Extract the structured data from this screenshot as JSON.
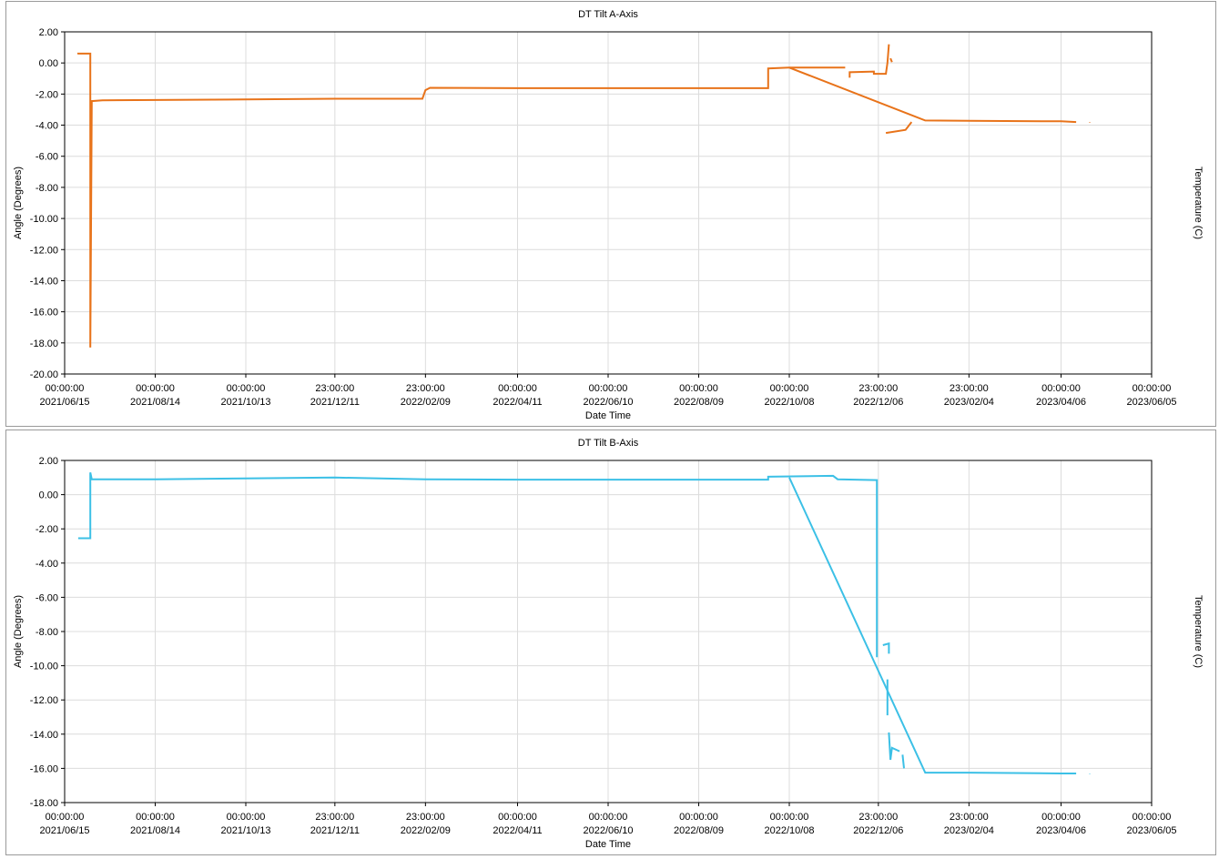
{
  "chart_data": [
    {
      "type": "line",
      "title": "DT Tilt A-Axis",
      "xlabel": "Date Time",
      "ylabel": "Angle (Degrees)",
      "y2label": "Temperature (C)",
      "ylim": [
        -20,
        2
      ],
      "ytick_step": 2,
      "yticks": [
        "2.00",
        "0.00",
        "-2.00",
        "-4.00",
        "-6.00",
        "-8.00",
        "-10.00",
        "-12.00",
        "-14.00",
        "-16.00",
        "-18.00",
        "-20.00"
      ],
      "xlim": [
        "2021-06-15",
        "2023-06-05"
      ],
      "xticks": [
        {
          "date": "2021-06-15",
          "time": "00:00:00",
          "label": "2021/06/15"
        },
        {
          "date": "2021-08-14",
          "time": "00:00:00",
          "label": "2021/08/14"
        },
        {
          "date": "2021-10-13",
          "time": "00:00:00",
          "label": "2021/10/13"
        },
        {
          "date": "2021-12-11",
          "time": "23:00:00",
          "label": "2021/12/11"
        },
        {
          "date": "2022-02-09",
          "time": "23:00:00",
          "label": "2022/02/09"
        },
        {
          "date": "2022-04-11",
          "time": "00:00:00",
          "label": "2022/04/11"
        },
        {
          "date": "2022-06-10",
          "time": "00:00:00",
          "label": "2022/06/10"
        },
        {
          "date": "2022-08-09",
          "time": "00:00:00",
          "label": "2022/08/09"
        },
        {
          "date": "2022-10-08",
          "time": "00:00:00",
          "label": "2022/10/08"
        },
        {
          "date": "2022-12-06",
          "time": "23:00:00",
          "label": "2022/12/06"
        },
        {
          "date": "2023-02-04",
          "time": "23:00:00",
          "label": "2023/02/04"
        },
        {
          "date": "2023-04-06",
          "time": "00:00:00",
          "label": "2023/04/06"
        },
        {
          "date": "2023-06-05",
          "time": "00:00:00",
          "label": "2023/06/05"
        }
      ],
      "grid": true,
      "series": [
        {
          "color": "#e8731a",
          "segments": [
            [
              [
                "2021-06-24",
                0.55
              ],
              [
                "2021-06-24",
                0.6
              ],
              [
                "2021-07-02",
                0.6
              ],
              [
                "2021-07-02",
                0.55
              ],
              [
                "2021-07-02",
                -18.3
              ],
              [
                "2021-07-03",
                -2.45
              ],
              [
                "2021-07-10",
                -2.4
              ],
              [
                "2021-08-14",
                -2.38
              ],
              [
                "2021-10-13",
                -2.35
              ],
              [
                "2021-12-11",
                -2.3
              ],
              [
                "2022-02-07",
                -2.3
              ],
              [
                "2022-02-09",
                -1.75
              ],
              [
                "2022-02-12",
                -1.6
              ],
              [
                "2022-04-11",
                -1.62
              ],
              [
                "2022-06-10",
                -1.62
              ],
              [
                "2022-08-09",
                -1.62
              ],
              [
                "2022-09-24",
                -1.62
              ],
              [
                "2022-09-24",
                -0.35
              ],
              [
                "2022-10-08",
                -0.3
              ],
              [
                "2022-11-14",
                -0.3
              ]
            ],
            [
              [
                "2022-10-08",
                -0.3
              ],
              [
                "2023-01-06",
                -3.7
              ],
              [
                "2023-02-04",
                -3.72
              ],
              [
                "2023-04-06",
                -3.75
              ],
              [
                "2023-04-16",
                -3.8
              ]
            ],
            [
              [
                "2022-11-17",
                -0.95
              ],
              [
                "2022-11-17",
                -0.6
              ],
              [
                "2022-12-03",
                -0.55
              ],
              [
                "2022-12-03",
                -0.7
              ],
              [
                "2022-12-11",
                -0.7
              ],
              [
                "2022-12-12",
                0.0
              ],
              [
                "2022-12-13",
                1.2
              ]
            ],
            [
              [
                "2022-12-11",
                -4.5
              ],
              [
                "2022-12-24",
                -4.3
              ],
              [
                "2022-12-28",
                -3.8
              ]
            ],
            [
              [
                "2022-12-14",
                0.3
              ],
              [
                "2022-12-15",
                0.05
              ]
            ],
            [
              [
                "2023-04-25",
                -3.82
              ],
              [
                "2023-04-25",
                -3.85
              ]
            ]
          ]
        }
      ]
    },
    {
      "type": "line",
      "title": "DT Tilt B-Axis",
      "xlabel": "Date Time",
      "ylabel": "Angle (Degrees)",
      "y2label": "Temperature (C)",
      "ylim": [
        -18,
        2
      ],
      "ytick_step": 2,
      "yticks": [
        "2.00",
        "0.00",
        "-2.00",
        "-4.00",
        "-6.00",
        "-8.00",
        "-10.00",
        "-12.00",
        "-14.00",
        "-16.00",
        "-18.00"
      ],
      "xlim": [
        "2021-06-15",
        "2023-06-05"
      ],
      "xticks": [
        {
          "date": "2021-06-15",
          "time": "00:00:00",
          "label": "2021/06/15"
        },
        {
          "date": "2021-08-14",
          "time": "00:00:00",
          "label": "2021/08/14"
        },
        {
          "date": "2021-10-13",
          "time": "00:00:00",
          "label": "2021/10/13"
        },
        {
          "date": "2021-12-11",
          "time": "23:00:00",
          "label": "2021/12/11"
        },
        {
          "date": "2022-02-09",
          "time": "23:00:00",
          "label": "2022/02/09"
        },
        {
          "date": "2022-04-11",
          "time": "00:00:00",
          "label": "2022/04/11"
        },
        {
          "date": "2022-06-10",
          "time": "00:00:00",
          "label": "2022/06/10"
        },
        {
          "date": "2022-08-09",
          "time": "00:00:00",
          "label": "2022/08/09"
        },
        {
          "date": "2022-10-08",
          "time": "00:00:00",
          "label": "2022/10/08"
        },
        {
          "date": "2022-12-06",
          "time": "23:00:00",
          "label": "2022/12/06"
        },
        {
          "date": "2023-02-04",
          "time": "23:00:00",
          "label": "2023/02/04"
        },
        {
          "date": "2023-04-06",
          "time": "00:00:00",
          "label": "2023/04/06"
        },
        {
          "date": "2023-06-05",
          "time": "00:00:00",
          "label": "2023/06/05"
        }
      ],
      "grid": true,
      "series": [
        {
          "color": "#3cc0e6",
          "segments": [
            [
              [
                "2021-06-24",
                -2.55
              ],
              [
                "2021-07-02",
                -2.55
              ],
              [
                "2021-07-02",
                1.3
              ],
              [
                "2021-07-03",
                0.9
              ],
              [
                "2021-08-14",
                0.9
              ],
              [
                "2021-10-13",
                0.95
              ],
              [
                "2021-12-11",
                1.0
              ],
              [
                "2022-02-09",
                0.9
              ],
              [
                "2022-04-11",
                0.88
              ],
              [
                "2022-06-10",
                0.88
              ],
              [
                "2022-08-09",
                0.88
              ],
              [
                "2022-09-24",
                0.88
              ],
              [
                "2022-09-24",
                1.05
              ],
              [
                "2022-11-06",
                1.1
              ],
              [
                "2022-11-09",
                0.9
              ],
              [
                "2022-12-05",
                0.85
              ],
              [
                "2022-12-05",
                -9.5
              ]
            ],
            [
              [
                "2022-10-08",
                1.0
              ],
              [
                "2023-01-06",
                -16.25
              ],
              [
                "2023-02-04",
                -16.25
              ],
              [
                "2023-04-06",
                -16.3
              ],
              [
                "2023-04-16",
                -16.3
              ]
            ],
            [
              [
                "2022-12-09",
                -8.8
              ],
              [
                "2022-12-13",
                -8.7
              ],
              [
                "2022-12-13",
                -9.3
              ]
            ],
            [
              [
                "2022-12-12",
                -10.8
              ],
              [
                "2022-12-12",
                -12.9
              ]
            ],
            [
              [
                "2022-12-13",
                -13.9
              ],
              [
                "2022-12-14",
                -15.5
              ],
              [
                "2022-12-15",
                -14.8
              ],
              [
                "2022-12-20",
                -15.0
              ]
            ],
            [
              [
                "2022-12-22",
                -15.2
              ],
              [
                "2022-12-23",
                -16.0
              ]
            ],
            [
              [
                "2023-04-25",
                -16.32
              ],
              [
                "2023-04-25",
                -16.34
              ]
            ]
          ]
        }
      ]
    }
  ]
}
